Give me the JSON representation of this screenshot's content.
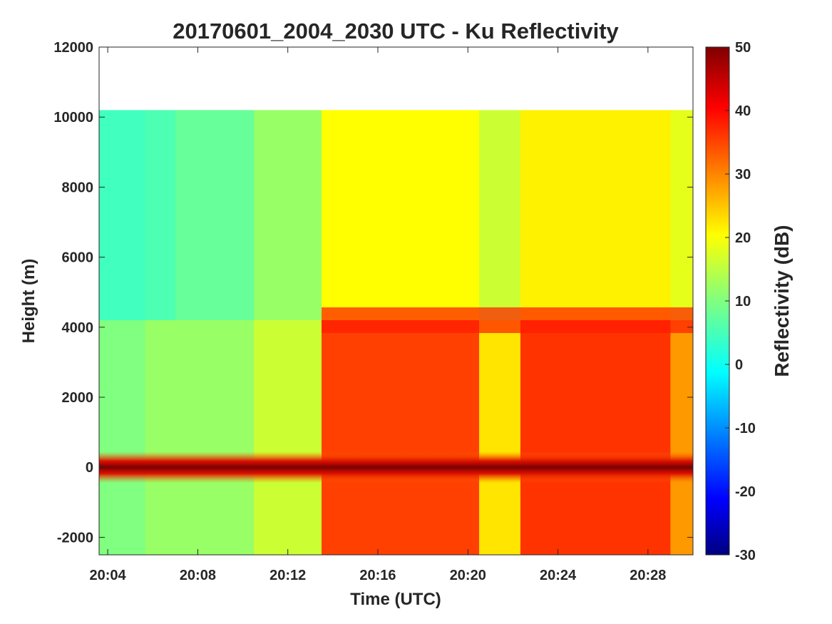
{
  "chart_data": {
    "type": "heatmap",
    "title": "20170601_2004_2030 UTC - Ku Reflectivity",
    "xlabel": "Time (UTC)",
    "ylabel": "Height (m)",
    "colorbar_label": "Reflectivity (dB)",
    "colormap": "jet",
    "x_ticks": [
      "20:04",
      "20:08",
      "20:12",
      "20:16",
      "20:20",
      "20:24",
      "20:28"
    ],
    "y_ticks": [
      "-2000",
      "0",
      "2000",
      "4000",
      "6000",
      "8000",
      "10000",
      "12000"
    ],
    "colorbar_ticks": [
      "-30",
      "-20",
      "-10",
      "0",
      "10",
      "20",
      "30",
      "40",
      "50"
    ],
    "xlim": [
      "20:03:37",
      "20:30:00"
    ],
    "ylim": [
      -2500,
      12000
    ],
    "clim": [
      -30,
      50
    ],
    "data_top_height_m": 10200,
    "surface_echo_height_m": 0,
    "surface_echo_dB": 50,
    "bright_band_height_m": 4200,
    "grid": false,
    "legend": "none",
    "regions": [
      {
        "start": "20:03:37",
        "end": "20:05:40",
        "upper_dB": 5,
        "lower_dB": 10
      },
      {
        "start": "20:05:40",
        "end": "20:07:00",
        "upper_dB": 6,
        "lower_dB": 12
      },
      {
        "start": "20:07:00",
        "end": "20:10:30",
        "upper_dB": 8,
        "lower_dB": 12
      },
      {
        "start": "20:10:30",
        "end": "20:13:30",
        "upper_dB": 12,
        "lower_dB": 16
      },
      {
        "start": "20:13:30",
        "end": "20:20:30",
        "upper_dB": 20,
        "lower_dB": 35
      },
      {
        "start": "20:20:30",
        "end": "20:22:20",
        "upper_dB": 16,
        "lower_dB": 22
      },
      {
        "start": "20:22:20",
        "end": "20:29:00",
        "upper_dB": 21,
        "lower_dB": 36
      },
      {
        "start": "20:29:00",
        "end": "20:30:00",
        "upper_dB": 18,
        "lower_dB": 28
      }
    ],
    "colors": {
      "axes": "#262626",
      "background": "#ffffff"
    }
  }
}
